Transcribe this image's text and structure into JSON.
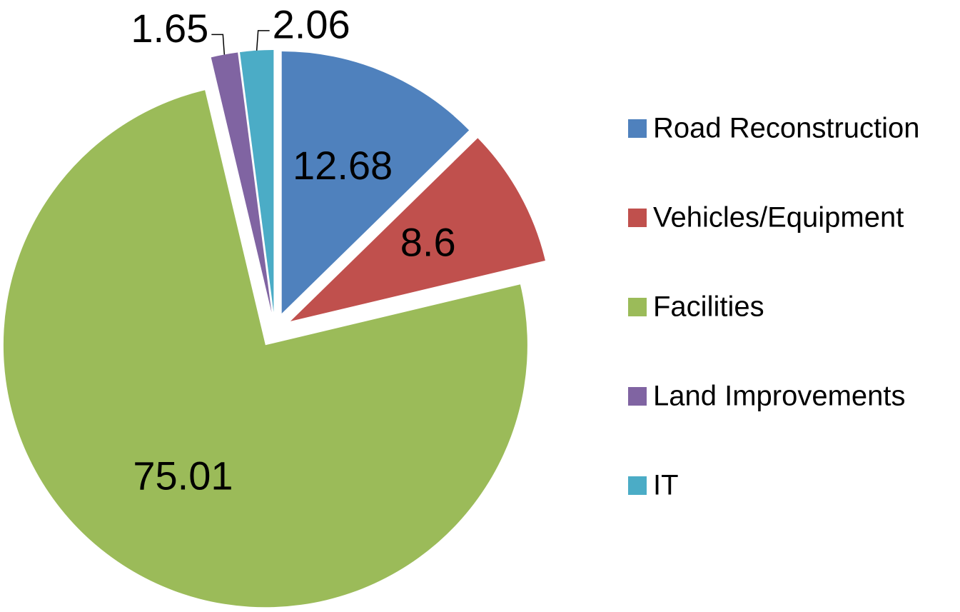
{
  "chart_data": {
    "type": "pie",
    "categories": [
      "Road Reconstruction",
      "Vehicles/Equipment",
      "Facilities",
      "Land Improvements",
      "IT"
    ],
    "values": [
      12.68,
      8.6,
      75.01,
      1.65,
      2.06
    ],
    "colors": [
      "#4f81bd",
      "#c0504d",
      "#9bbb59",
      "#8064a2",
      "#4bacc6"
    ],
    "exploded": true,
    "legend": "right"
  }
}
